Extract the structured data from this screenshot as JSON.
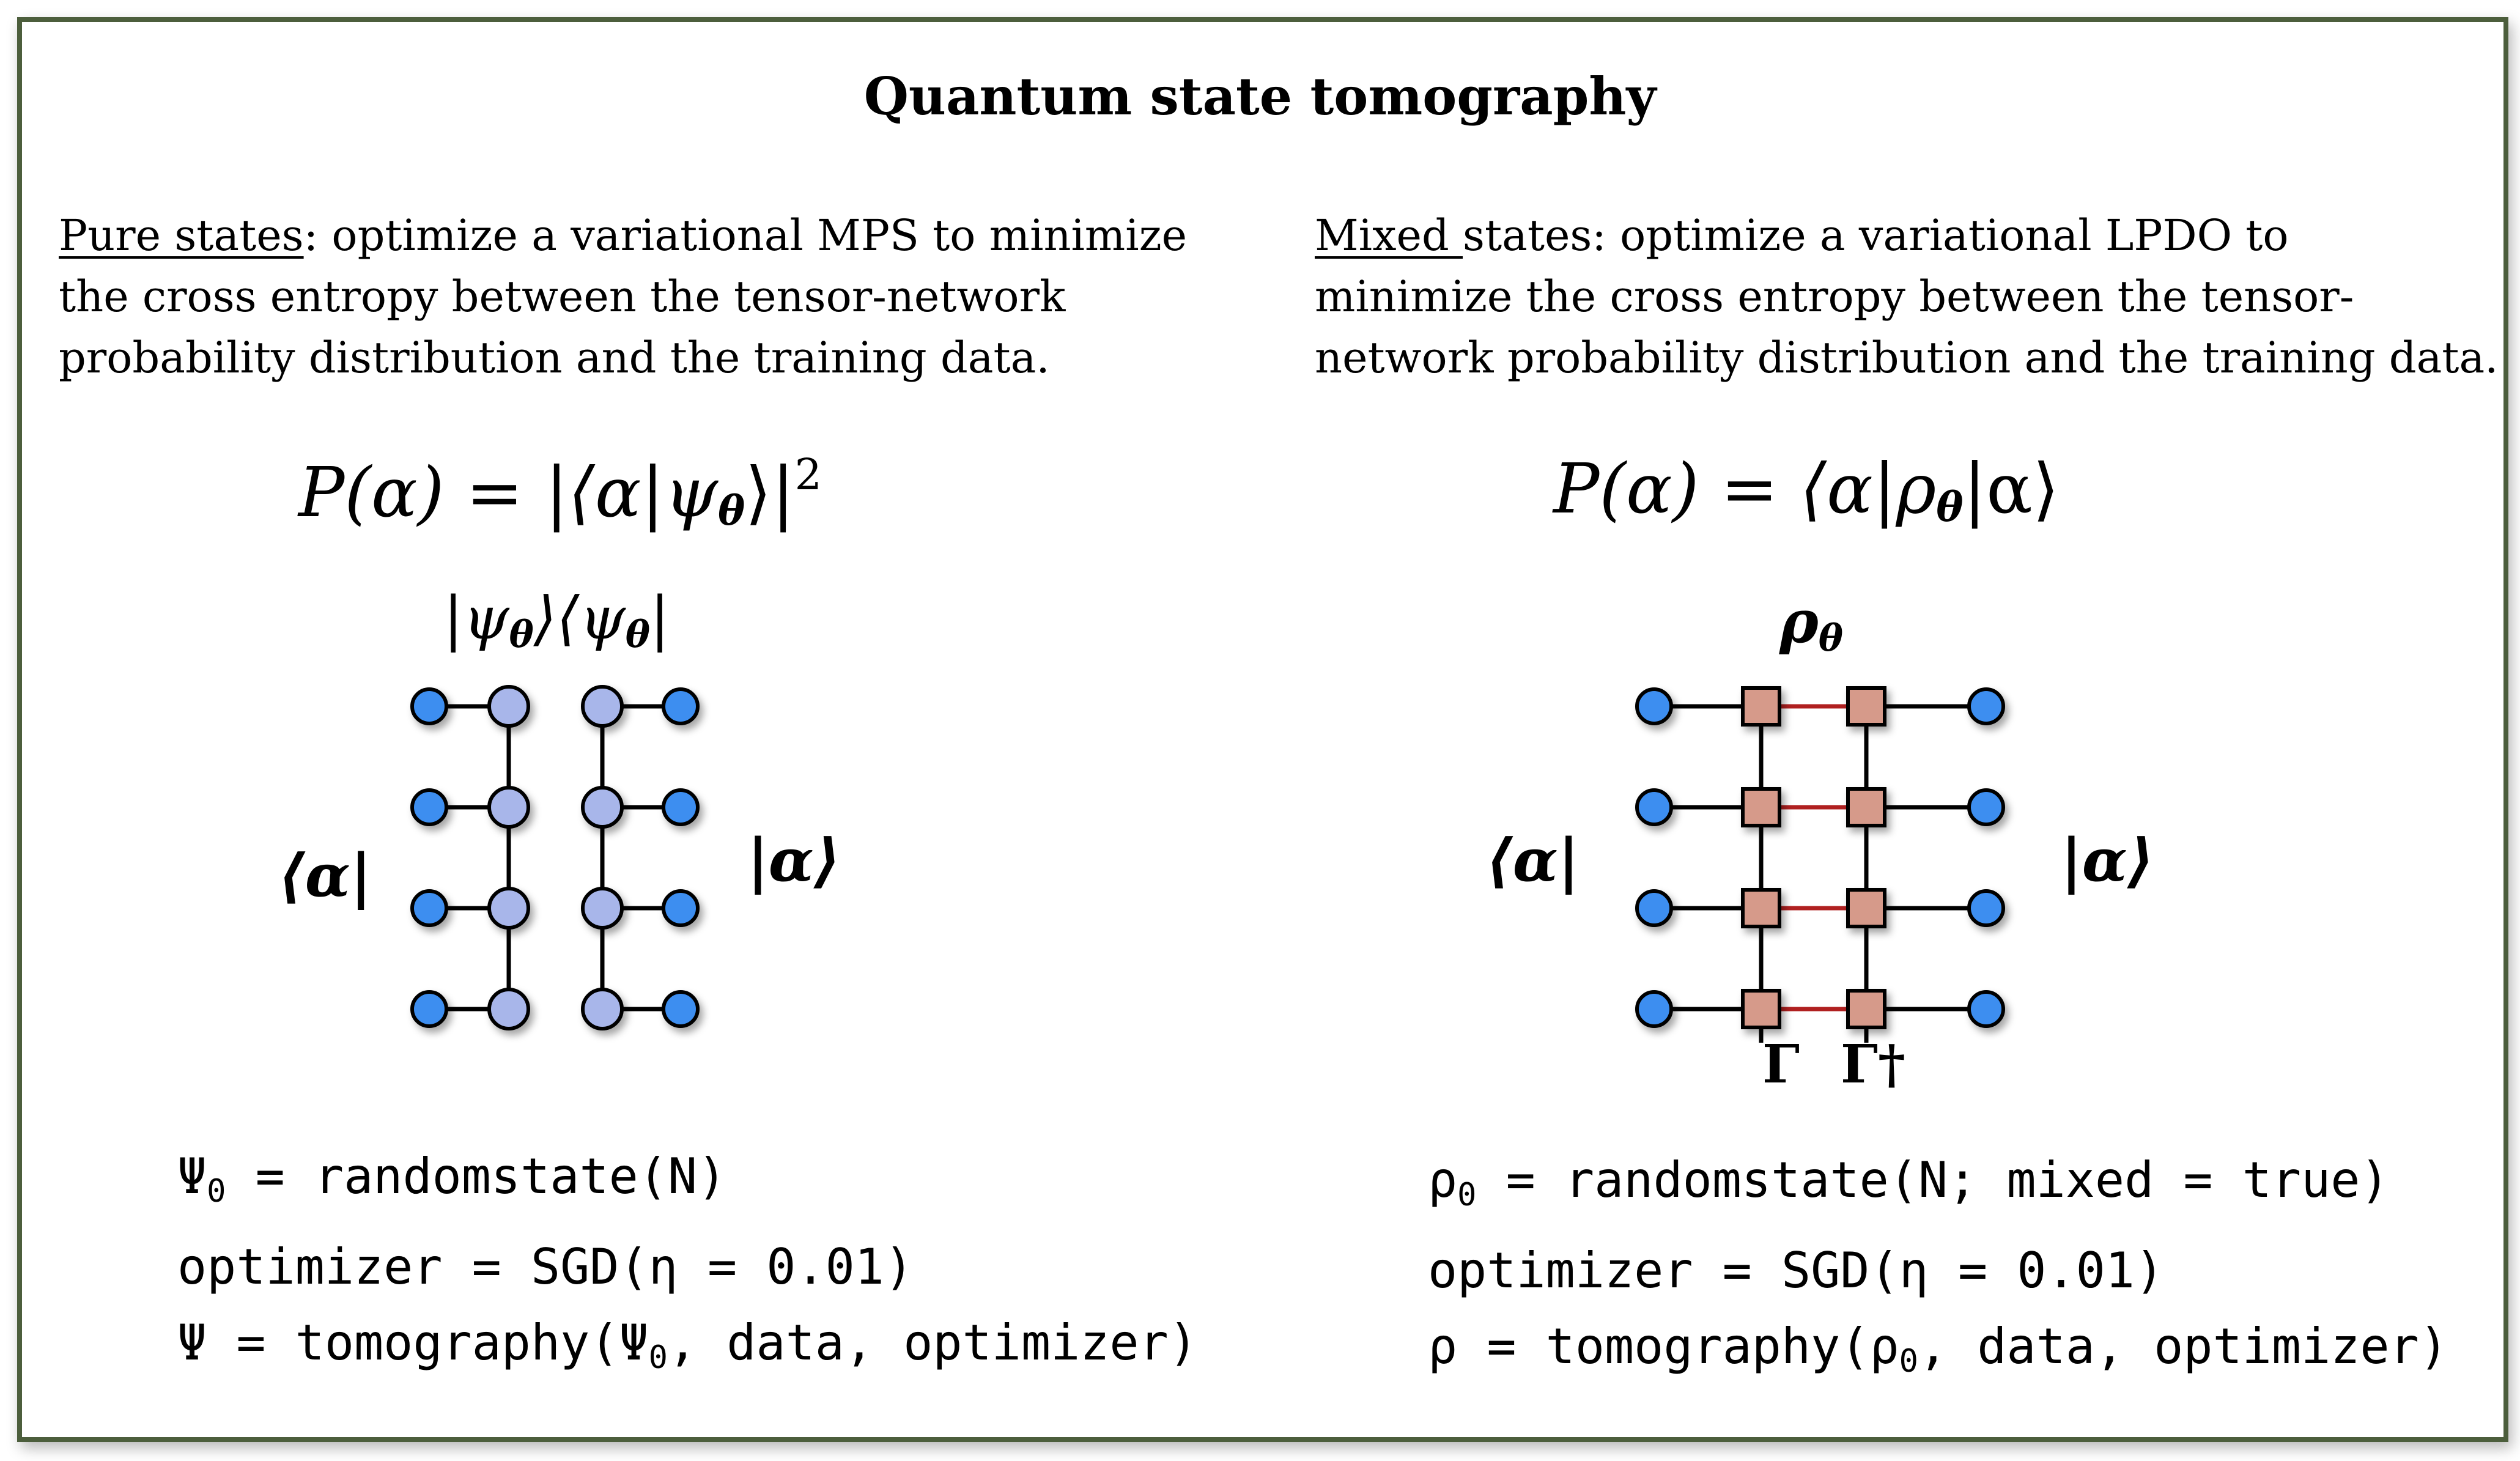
{
  "title": "Quantum state tomography",
  "left": {
    "heading": "Pure states",
    "desc_line1_rest": ": optimize a variational MPS to minimize",
    "desc_line2": "the cross entropy between the tensor-network",
    "desc_line3": "probability distribution and the training data.",
    "eq_lhs": "P(α) = |⟨α|ψ",
    "eq_sub": "θ",
    "eq_rhs": "⟩|",
    "eq_sup": "2",
    "diagram_label_a": "|ψ",
    "diagram_label_b": "⟩⟨ψ",
    "diagram_label_c": "|",
    "diagram_label_sub": "θ",
    "bra_label": "⟨α|",
    "ket_label": "|α⟩",
    "code_line1_a": "Ψ",
    "code_line1_sub": "0",
    "code_line1_b": " = randomstate(N)",
    "code_line2": "optimizer = SGD(η = 0.01)",
    "code_line3_a": "Ψ = tomography(Ψ",
    "code_line3_sub": "0",
    "code_line3_b": ", data, optimizer)"
  },
  "right": {
    "heading": "Mixed ",
    "desc_line1_rest": "states: optimize a variational LPDO to",
    "desc_line2": "minimize the cross entropy between the tensor-",
    "desc_line3": "network probability distribution and the training data.",
    "eq_lhs": "P(α) = ⟨α|ρ",
    "eq_sub": "θ",
    "eq_rhs": "|α⟩",
    "rho_label": "ρ",
    "rho_sub": "θ",
    "bra_label": "⟨α|",
    "ket_label": "|α⟩",
    "gamma_label": "Γ",
    "gamma_dag_label": "Γ†",
    "code_line1_a": "ρ",
    "code_line1_sub": "0",
    "code_line1_b": " = randomstate(N; mixed = true)",
    "code_line2": "optimizer = SGD(η = 0.01)",
    "code_line3_a": "ρ = tomography(ρ",
    "code_line3_sub": "0",
    "code_line3_b": ", data, optimizer)"
  },
  "colors": {
    "frame": "#4c5e3c",
    "site_blue": "#3d8ef0",
    "mps_tensor": "#a8b6ea",
    "lpdo_tensor": "#d69a8a",
    "kraus_bond": "#b02020"
  }
}
